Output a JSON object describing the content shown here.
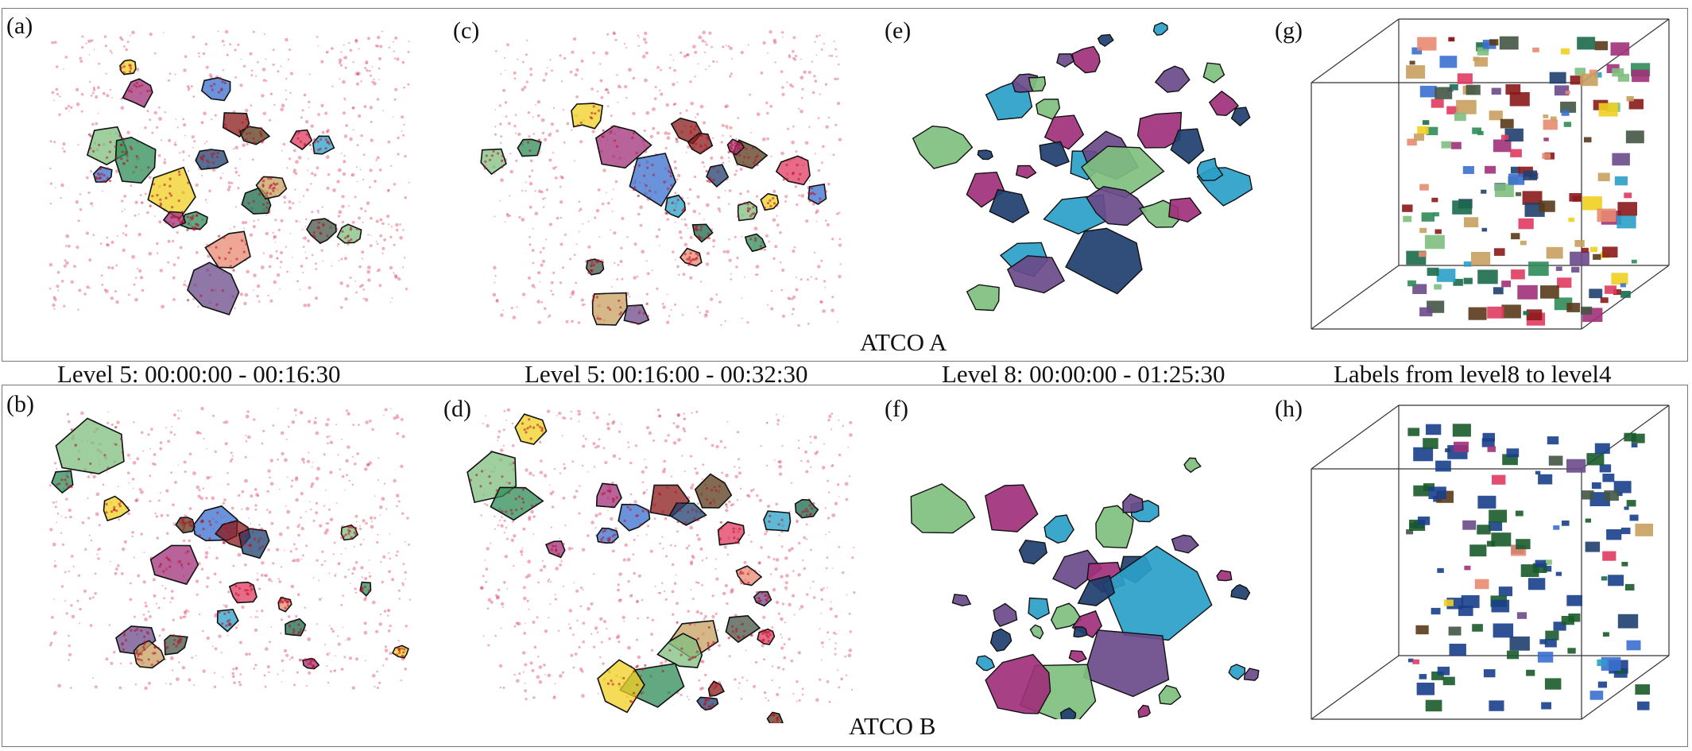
{
  "panels": [
    {
      "letter": "(a)",
      "caption": "Level 5: 00:00:00 - 00:16:30",
      "row": "ATCO A"
    },
    {
      "letter": "(b)",
      "caption": "",
      "row": "ATCO B"
    },
    {
      "letter": "(c)",
      "caption": "Level 5: 00:16:00 - 00:32:30",
      "row": "ATCO A"
    },
    {
      "letter": "(d)",
      "caption": "",
      "row": "ATCO B"
    },
    {
      "letter": "(e)",
      "caption": "Level 8: 00:00:00 - 01:25:30",
      "row": "ATCO A"
    },
    {
      "letter": "(f)",
      "caption": "",
      "row": "ATCO B"
    },
    {
      "letter": "(g)",
      "caption": "Labels from level8 to level4",
      "row": "ATCO A"
    },
    {
      "letter": "(h)",
      "caption": "",
      "row": "ATCO B"
    }
  ],
  "row_labels": {
    "top": "ATCO A",
    "bottom": "ATCO B"
  },
  "colors": {
    "points": "#d4163c",
    "frame": "#777777",
    "palette": [
      "#7fbf7f",
      "#2e8b57",
      "#f0d020",
      "#a0307a",
      "#3a6fd0",
      "#8b1a1a",
      "#1f3f6f",
      "#5a3a1a",
      "#e03a60",
      "#2aa0c8",
      "#1a6a4a",
      "#e88a70",
      "#6a4a8a",
      "#c8a060",
      "#445544"
    ],
    "bottom_3d_accent": "#183f8c",
    "bottom_3d_second": "#1a5a2a"
  }
}
